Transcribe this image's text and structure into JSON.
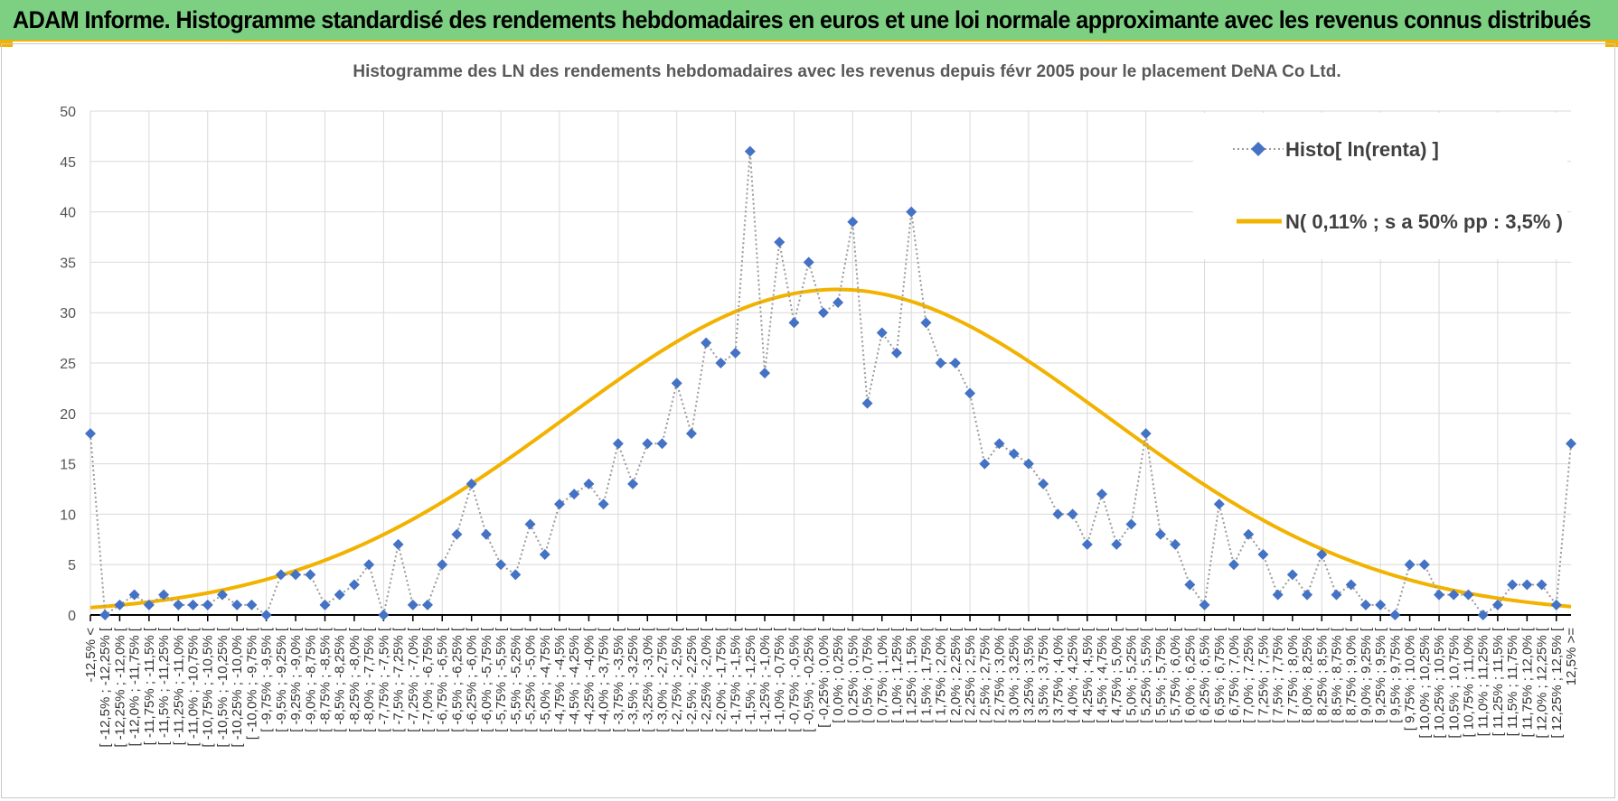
{
  "header": {
    "title": "ADAM Informe. Histogramme standardisé des rendements hebdomadaires en euros et une loi normale approximante avec les revenus connus distribués"
  },
  "colors": {
    "banner": "#7dcf82",
    "accent": "#f2b200",
    "histo": "#4472c4",
    "normal": "#f2b200",
    "grid": "#d9d9d9"
  },
  "chart_data": {
    "type": "line",
    "title": "Histogramme des LN des rendements hebdomadaires avec les revenus depuis févr 2005 pour le placement DeNA Co Ltd.",
    "xlabel": "",
    "ylabel": "",
    "ylim": [
      0,
      50
    ],
    "yticks": [
      0,
      5,
      10,
      15,
      20,
      25,
      30,
      35,
      40,
      45,
      50
    ],
    "grid": true,
    "legend_position": "top-right",
    "categories": [
      "-12,5% <",
      "[ -12,5% ; -12,25% [",
      "[ -12,25% ; -12,0% [",
      "[ -12,0% ; -11,75% [",
      "[ -11,75% ; -11,5% [",
      "[ -11,5% ; -11,25% [",
      "[ -11,25% ; -11,0% [",
      "[ -11,0% ; -10,75% [",
      "[ -10,75% ; -10,5% [",
      "[ -10,5% ; -10,25% [",
      "[ -10,25% ; -10,0% [",
      "[ -10,0% ; -9,75% [",
      "[ -9,75% ; -9,5% [",
      "[ -9,5% ; -9,25% [",
      "[ -9,25% ; -9,0% [",
      "[ -9,0% ; -8,75% [",
      "[ -8,75% ; -8,5% [",
      "[ -8,5% ; -8,25% [",
      "[ -8,25% ; -8,0% [",
      "[ -8,0% ; -7,75% [",
      "[ -7,75% ; -7,5% [",
      "[ -7,5% ; -7,25% [",
      "[ -7,25% ; -7,0% [",
      "[ -7,0% ; -6,75% [",
      "[ -6,75% ; -6,5% [",
      "[ -6,5% ; -6,25% [",
      "[ -6,25% ; -6,0% [",
      "[ -6,0% ; -5,75% [",
      "[ -5,75% ; -5,5% [",
      "[ -5,5% ; -5,25% [",
      "[ -5,25% ; -5,0% [",
      "[ -5,0% ; -4,75% [",
      "[ -4,75% ; -4,5% [",
      "[ -4,5% ; -4,25% [",
      "[ -4,25% ; -4,0% [",
      "[ -4,0% ; -3,75% [",
      "[ -3,75% ; -3,5% [",
      "[ -3,5% ; -3,25% [",
      "[ -3,25% ; -3,0% [",
      "[ -3,0% ; -2,75% [",
      "[ -2,75% ; -2,5% [",
      "[ -2,5% ; -2,25% [",
      "[ -2,25% ; -2,0% [",
      "[ -2,0% ; -1,75% [",
      "[ -1,75% ; -1,5% [",
      "[ -1,5% ; -1,25% [",
      "[ -1,25% ; -1,0% [",
      "[ -1,0% ; -0,75% [",
      "[ -0,75% ; -0,5% [",
      "[ -0,5% ; -0,25% [",
      "[ -0,25% ; 0,0% [",
      "[ 0,0% ; 0,25% [",
      "[ 0,25% ; 0,5% [",
      "[ 0,5% ; 0,75% [",
      "[ 0,75% ; 1,0% [",
      "[ 1,0% ; 1,25% [",
      "[ 1,25% ; 1,5% [",
      "[ 1,5% ; 1,75% [",
      "[ 1,75% ; 2,0% [",
      "[ 2,0% ; 2,25% [",
      "[ 2,25% ; 2,5% [",
      "[ 2,5% ; 2,75% [",
      "[ 2,75% ; 3,0% [",
      "[ 3,0% ; 3,25% [",
      "[ 3,25% ; 3,5% [",
      "[ 3,5% ; 3,75% [",
      "[ 3,75% ; 4,0% [",
      "[ 4,0% ; 4,25% [",
      "[ 4,25% ; 4,5% [",
      "[ 4,5% ; 4,75% [",
      "[ 4,75% ; 5,0% [",
      "[ 5,0% ; 5,25% [",
      "[ 5,25% ; 5,5% [",
      "[ 5,5% ; 5,75% [",
      "[ 5,75% ; 6,0% [",
      "[ 6,0% ; 6,25% [",
      "[ 6,25% ; 6,5% [",
      "[ 6,5% ; 6,75% [",
      "[ 6,75% ; 7,0% [",
      "[ 7,0% ; 7,25% [",
      "[ 7,25% ; 7,5% [",
      "[ 7,5% ; 7,75% [",
      "[ 7,75% ; 8,0% [",
      "[ 8,0% ; 8,25% [",
      "[ 8,25% ; 8,5% [",
      "[ 8,5% ; 8,75% [",
      "[ 8,75% ; 9,0% [",
      "[ 9,0% ; 9,25% [",
      "[ 9,25% ; 9,5% [",
      "[ 9,5% ; 9,75% [",
      "[ 9,75% ; 10,0% [",
      "[ 10,0% ; 10,25% [",
      "[ 10,25% ; 10,5% [",
      "[ 10,5% ; 10,75% [",
      "[ 10,75% ; 11,0% [",
      "[ 11,0% ; 11,25% [",
      "[ 11,25% ; 11,5% [",
      "[ 11,5% ; 11,75% [",
      "[ 11,75% ; 12,0% [",
      "[ 12,0% ; 12,25% [",
      "[ 12,25% ; 12,5% [",
      "12,5% >="
    ],
    "series": [
      {
        "name": "Histo[ ln(renta) ]",
        "style": "dotted-line-diamonds",
        "values": [
          18,
          0,
          1,
          2,
          1,
          2,
          1,
          1,
          1,
          2,
          1,
          1,
          0,
          4,
          4,
          4,
          1,
          2,
          3,
          5,
          0,
          7,
          1,
          1,
          5,
          8,
          13,
          8,
          5,
          4,
          9,
          6,
          11,
          12,
          13,
          11,
          17,
          13,
          17,
          17,
          23,
          18,
          27,
          25,
          26,
          46,
          24,
          37,
          29,
          35,
          30,
          31,
          39,
          21,
          28,
          26,
          40,
          29,
          25,
          25,
          22,
          15,
          17,
          16,
          15,
          13,
          10,
          10,
          7,
          12,
          7,
          9,
          18,
          8,
          7,
          3,
          1,
          11,
          5,
          8,
          6,
          2,
          4,
          2,
          6,
          2,
          3,
          1,
          1,
          0,
          5,
          5,
          2,
          2,
          2,
          0,
          1,
          3,
          3,
          3,
          1,
          17
        ]
      },
      {
        "name": "N( 0,11% ; s a 50% pp : 3,5% )",
        "style": "smooth-line",
        "mean": 0.11,
        "peak": 32.3,
        "sigma_bins": 18.5
      }
    ]
  }
}
